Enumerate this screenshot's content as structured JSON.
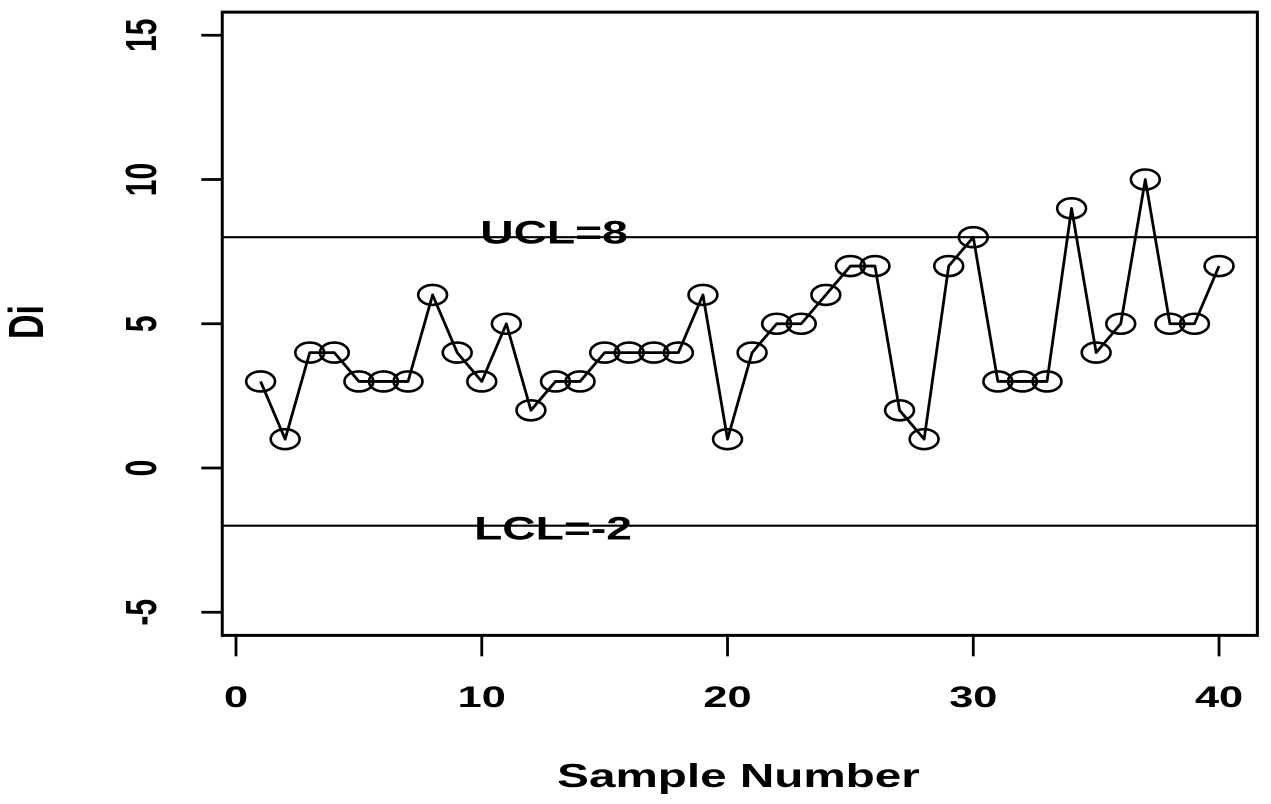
{
  "figure": {
    "background_color": "#ffffff",
    "line_color": "#000000"
  },
  "chart_data": {
    "type": "line",
    "subtype": "control-chart",
    "title": "",
    "xlabel": "Sample Number",
    "ylabel": "Di",
    "marker": "open-circle",
    "grid": false,
    "legend": null,
    "x": [
      1,
      2,
      3,
      4,
      5,
      6,
      7,
      8,
      9,
      10,
      11,
      12,
      13,
      14,
      15,
      16,
      17,
      18,
      19,
      20,
      21,
      22,
      23,
      24,
      25,
      26,
      27,
      28,
      29,
      30,
      31,
      32,
      33,
      34,
      35,
      36,
      37,
      38,
      39,
      40
    ],
    "values": [
      3,
      1,
      4,
      4,
      3,
      3,
      3,
      6,
      4,
      3,
      5,
      2,
      3,
      3,
      4,
      4,
      4,
      4,
      6,
      1,
      4,
      5,
      5,
      6,
      7,
      7,
      2,
      1,
      7,
      8,
      3,
      3,
      3,
      9,
      4,
      5,
      10,
      5,
      5,
      7
    ],
    "x_ticks": [
      0,
      10,
      20,
      30,
      40
    ],
    "y_ticks": [
      -5,
      0,
      5,
      10,
      15
    ],
    "xlim": [
      -0.56,
      41.56
    ],
    "ylim": [
      -5.8,
      15.8
    ],
    "control_limits": {
      "ucl": {
        "value": 8,
        "label": "UCL=8"
      },
      "lcl": {
        "value": -2,
        "label": "LCL=-2"
      }
    }
  }
}
